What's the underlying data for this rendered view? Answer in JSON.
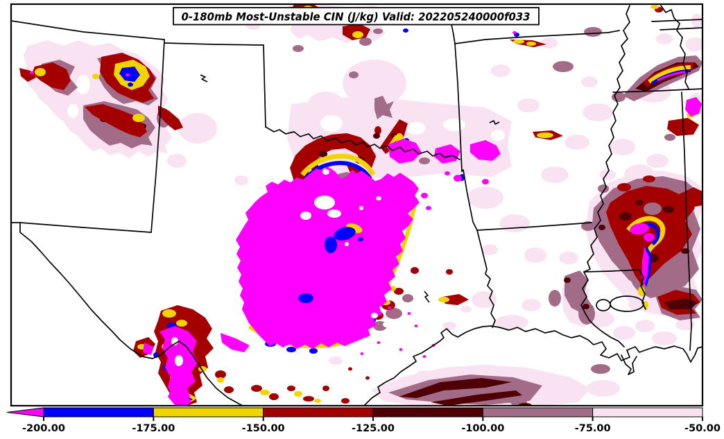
{
  "header": {
    "title": "0-180mb Most-Unstable CIN (J/kg) Valid: 202205240000f033"
  },
  "chart_data": {
    "type": "heatmap",
    "title": "0-180mb Most-Unstable CIN (J/kg)",
    "valid_label": "Valid: 202205240000f033",
    "layer": "0-180mb",
    "variable": "Most-Unstable CIN",
    "units": "J/kg",
    "legend_position": "bottom",
    "palette": {
      "magenta": "#FF00FF",
      "blue": "#0000FF",
      "yellow": "#F0D500",
      "red": "#A40000",
      "maroon": "#4E0005",
      "mauve": "#A26C88",
      "pink": "#F9E3F3",
      "outline": "#000000"
    },
    "colorbar": {
      "orientation": "horizontal",
      "tick_labels": [
        "-200.00",
        "-175.00",
        "-150.00",
        "-125.00",
        "-100.00",
        "-75.00",
        "-50.00"
      ],
      "tick_values": [
        -200,
        -175,
        -150,
        -125,
        -100,
        -75,
        -50
      ],
      "segment_colors": [
        "#0000FF",
        "#F0D500",
        "#A40000",
        "#4E0005",
        "#A26C88",
        "#F9E3F3"
      ],
      "extend_min_color": "#FF00FF",
      "bins": [
        {
          "range": "< -200",
          "color": "#FF00FF"
        },
        {
          "range": "-200 to -175",
          "color": "#0000FF"
        },
        {
          "range": "-175 to -150",
          "color": "#F0D500"
        },
        {
          "range": "-150 to -125",
          "color": "#A40000"
        },
        {
          "range": "-125 to -100",
          "color": "#4E0005"
        },
        {
          "range": "-100 to -75",
          "color": "#A26C88"
        },
        {
          "range": "-75 to -50",
          "color": "#F9E3F3"
        }
      ]
    }
  }
}
